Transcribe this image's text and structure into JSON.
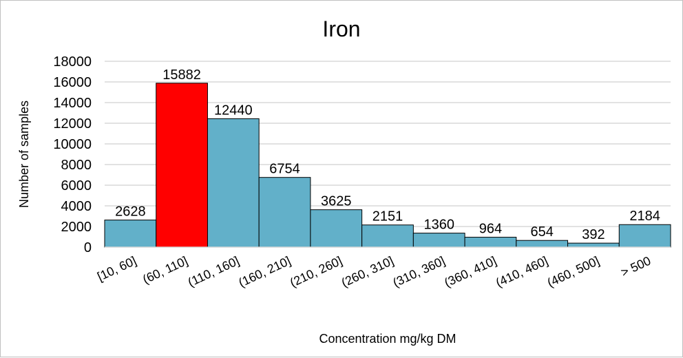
{
  "chart_data": {
    "type": "bar",
    "title": "Iron",
    "xlabel": "Concentration mg/kg DM",
    "ylabel": "Number of samples",
    "categories": [
      "[10, 60]",
      "(60, 110]",
      "(110, 160]",
      "(160, 210]",
      "(210, 260]",
      "(260, 310]",
      "(310, 360]",
      "(360, 410]",
      "(410, 460]",
      "(460, 500]",
      "> 500"
    ],
    "values": [
      2628,
      15882,
      12440,
      6754,
      3625,
      2151,
      1360,
      964,
      654,
      392,
      2184
    ],
    "ylim": [
      0,
      18000
    ],
    "yticks": [
      0,
      2000,
      4000,
      6000,
      8000,
      10000,
      12000,
      14000,
      16000,
      18000
    ],
    "grid": true,
    "highlight_index": 1,
    "colors": {
      "bar": "#62b0c9",
      "highlight": "#ff0000",
      "grid": "#d9d9d9",
      "bar_edge": "#000000"
    }
  }
}
